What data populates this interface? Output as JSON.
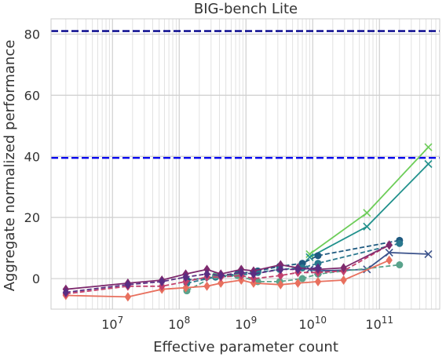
{
  "chart_data": {
    "type": "line",
    "title": "BIG-bench Lite",
    "xlabel": "Effective parameter count",
    "ylabel": "Aggregate normalized performance",
    "x_scale": "log",
    "xlim": [
      1200000.0,
      800000000000.0
    ],
    "ylim": [
      -10,
      85
    ],
    "x_ticks": [
      {
        "value": 10000000.0,
        "base": "10",
        "exp": "7"
      },
      {
        "value": 100000000.0,
        "base": "10",
        "exp": "8"
      },
      {
        "value": 1000000000.0,
        "base": "10",
        "exp": "9"
      },
      {
        "value": 10000000000.0,
        "base": "10",
        "exp": "10"
      },
      {
        "value": 100000000000.0,
        "base": "10",
        "exp": "11"
      }
    ],
    "y_ticks": [
      {
        "value": 0,
        "label": "0"
      },
      {
        "value": 20,
        "label": "20"
      },
      {
        "value": 40,
        "label": "40"
      },
      {
        "value": 60,
        "label": "60"
      },
      {
        "value": 80,
        "label": "80"
      }
    ],
    "grid": true,
    "reference_lines": [
      {
        "y": 81,
        "color": "#00008b"
      },
      {
        "y": 39.5,
        "color": "#0000ee"
      }
    ],
    "series": [
      {
        "color": "#6dcd59",
        "marker": "x",
        "dash": false,
        "x": [
          9000000000.0,
          65000000000.0,
          540000000000.0
        ],
        "y": [
          8,
          21.5,
          43
        ]
      },
      {
        "color": "#21918c",
        "marker": "x",
        "dash": false,
        "x": [
          9000000000.0,
          65000000000.0,
          540000000000.0
        ],
        "y": [
          7,
          17,
          37.5
        ]
      },
      {
        "color": "#3b528b",
        "marker": "x",
        "dash": false,
        "x": [
          9000000000.0,
          12000000000.0,
          65000000000.0,
          140000000000.0,
          540000000000.0
        ],
        "y": [
          3,
          2.5,
          3,
          8.5,
          8
        ]
      },
      {
        "color": "#1f5a80",
        "marker": "circle",
        "dash": true,
        "x": [
          130000000.0,
          350000000.0,
          750000000.0,
          1500000000.0,
          3200000000.0,
          7000000000.0,
          12000000000.0,
          200000000000.0
        ],
        "y": [
          -0.5,
          0.5,
          1.5,
          2.5,
          4,
          5,
          7.5,
          12.5
        ]
      },
      {
        "color": "#2a788e",
        "marker": "circle",
        "dash": true,
        "x": [
          130000000.0,
          350000000.0,
          750000000.0,
          1500000000.0,
          3200000000.0,
          7000000000.0,
          12000000000.0,
          200000000000.0
        ],
        "y": [
          -1.5,
          0.5,
          1,
          2,
          3,
          3.5,
          5,
          11.5
        ]
      },
      {
        "color": "#5aa38c",
        "marker": "circle",
        "dash": true,
        "x": [
          130000000.0,
          350000000.0,
          750000000.0,
          1500000000.0,
          3200000000.0,
          7000000000.0,
          12000000000.0,
          200000000000.0
        ],
        "y": [
          -4,
          1,
          1,
          -1,
          -1,
          0,
          1.5,
          4.5
        ]
      },
      {
        "color": "#e8705e",
        "marker": "diamond",
        "dash": false,
        "x": [
          2000000.0,
          17000000.0,
          55000000.0,
          125000000.0,
          260000000.0,
          420000000.0,
          850000000.0,
          1300000000.0,
          3300000000.0,
          6000000000.0,
          12000000000.0,
          29000000000.0,
          140000000000.0
        ],
        "y": [
          -5.5,
          -6,
          -3.5,
          -3,
          -2.5,
          -1.5,
          -0.5,
          -1.5,
          -2,
          -1.5,
          -1,
          -0.5,
          6
        ]
      },
      {
        "color": "#c2406c",
        "marker": "diamond",
        "dash": true,
        "x": [
          2000000.0,
          17000000.0,
          55000000.0,
          125000000.0,
          260000000.0,
          420000000.0,
          850000000.0,
          1300000000.0,
          3300000000.0,
          6000000000.0,
          12000000000.0,
          29000000000.0,
          140000000000.0
        ],
        "y": [
          -5,
          -2.5,
          -2.5,
          -1,
          0.5,
          0.5,
          1,
          0,
          1,
          2,
          2,
          2.5,
          11
        ]
      },
      {
        "color": "#7e2a6e",
        "marker": "diamond",
        "dash": false,
        "x": [
          2000000.0,
          17000000.0,
          55000000.0,
          125000000.0,
          260000000.0,
          420000000.0,
          850000000.0,
          1300000000.0,
          3300000000.0,
          6000000000.0,
          12000000000.0,
          29000000000.0,
          140000000000.0
        ],
        "y": [
          -3.5,
          -1.5,
          -0.5,
          1.5,
          3,
          1.5,
          3,
          2.5,
          4.5,
          3.5,
          3,
          3.5,
          11
        ]
      },
      {
        "color": "#5a2d82",
        "marker": "diamond",
        "dash": true,
        "x": [
          2000000.0,
          17000000.0,
          55000000.0,
          125000000.0,
          260000000.0,
          420000000.0,
          850000000.0,
          1300000000.0,
          3300000000.0,
          6000000000.0,
          12000000000.0
        ],
        "y": [
          -4.5,
          -2,
          -1,
          0.5,
          1.5,
          1,
          2,
          1.5,
          3,
          3,
          3.5
        ]
      }
    ]
  }
}
